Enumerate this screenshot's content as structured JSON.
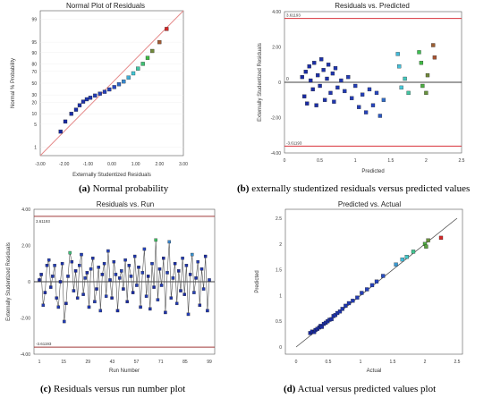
{
  "figure": {
    "captions": [
      {
        "letter": "(a)",
        "text": " Normal probability"
      },
      {
        "letter": "(b)",
        "text": " externally studentized residuals versus predicted values"
      },
      {
        "letter": "(c)",
        "text": " Residuals versus run number plot"
      },
      {
        "letter": "(d)",
        "text": " Actual versus predicted values plot"
      }
    ]
  },
  "chart_data": [
    {
      "id": "a",
      "type": "scatter",
      "title": "Normal Plot of Residuals",
      "xlabel": "Externally Studentized Residuals",
      "ylabel": "Normal % Probability",
      "xlim": [
        -3.0,
        3.0
      ],
      "x_ticks": [
        "-3.00",
        "-2.00",
        "-1.00",
        "0.00",
        "1.00",
        "2.00",
        "3.00"
      ],
      "y_ticks": [
        "1",
        "5",
        "10",
        "20",
        "30",
        "50",
        "70",
        "80",
        "90",
        "95",
        "99"
      ],
      "reference_line": "diagonal",
      "points": [
        [
          -2.15,
          3
        ],
        [
          -1.95,
          6
        ],
        [
          -1.7,
          10
        ],
        [
          -1.5,
          13
        ],
        [
          -1.35,
          17
        ],
        [
          -1.2,
          21
        ],
        [
          -1.05,
          24
        ],
        [
          -0.9,
          26
        ],
        [
          -0.7,
          29
        ],
        [
          -0.5,
          32
        ],
        [
          -0.3,
          35
        ],
        [
          -0.1,
          39
        ],
        [
          0.1,
          43
        ],
        [
          0.3,
          48
        ],
        [
          0.5,
          53
        ],
        [
          0.7,
          60
        ],
        [
          0.9,
          67
        ],
        [
          1.1,
          74
        ],
        [
          1.3,
          80
        ],
        [
          1.5,
          86
        ],
        [
          1.7,
          91
        ],
        [
          2.0,
          95
        ],
        [
          2.3,
          98
        ]
      ]
    },
    {
      "id": "b",
      "type": "scatter",
      "title": "Residuals vs. Predicted",
      "xlabel": "Predicted",
      "ylabel": "Externally Studentized Residuals",
      "xlim": [
        0,
        2.5
      ],
      "ylim": [
        -4.0,
        4.0
      ],
      "x_ticks": [
        "0",
        "0.5",
        "1",
        "1.5",
        "2",
        "2.5"
      ],
      "y_ticks": [
        "4.00",
        "2.00",
        "0",
        "-2.00",
        "-4.00"
      ],
      "limit_labels": [
        "3.61193",
        "-3.61193"
      ],
      "limits": [
        3.61193,
        -3.61193
      ],
      "points": [
        [
          0.25,
          0.3
        ],
        [
          0.28,
          -0.8
        ],
        [
          0.3,
          0.6
        ],
        [
          0.32,
          -1.2
        ],
        [
          0.35,
          0.9
        ],
        [
          0.37,
          0.1
        ],
        [
          0.4,
          -0.4
        ],
        [
          0.42,
          1.1
        ],
        [
          0.45,
          -1.3
        ],
        [
          0.47,
          0.4
        ],
        [
          0.5,
          -0.2
        ],
        [
          0.52,
          1.3
        ],
        [
          0.55,
          0.7
        ],
        [
          0.57,
          -1.0
        ],
        [
          0.6,
          0.2
        ],
        [
          0.62,
          1.0
        ],
        [
          0.65,
          -0.6
        ],
        [
          0.68,
          0.5
        ],
        [
          0.7,
          -1.1
        ],
        [
          0.72,
          0.8
        ],
        [
          0.75,
          -0.3
        ],
        [
          0.8,
          0.1
        ],
        [
          0.85,
          -0.5
        ],
        [
          0.9,
          0.3
        ],
        [
          0.95,
          -0.9
        ],
        [
          1.0,
          -0.2
        ],
        [
          1.05,
          -1.4
        ],
        [
          1.1,
          -0.7
        ],
        [
          1.15,
          -1.7
        ],
        [
          1.2,
          -0.4
        ],
        [
          1.25,
          -1.3
        ],
        [
          1.3,
          -0.6
        ],
        [
          1.35,
          -1.9
        ],
        [
          1.4,
          -1.0
        ],
        [
          1.6,
          1.6
        ],
        [
          1.62,
          0.9
        ],
        [
          1.65,
          -0.3
        ],
        [
          1.7,
          0.2
        ],
        [
          1.75,
          -0.6
        ],
        [
          1.9,
          1.7
        ],
        [
          1.93,
          1.1
        ],
        [
          1.95,
          -0.2
        ],
        [
          2.0,
          -0.6
        ],
        [
          2.02,
          0.4
        ],
        [
          2.1,
          2.1
        ],
        [
          2.12,
          1.4
        ]
      ]
    },
    {
      "id": "c",
      "type": "line",
      "title": "Residuals vs. Run",
      "xlabel": "Run Number",
      "ylabel": "Externally Studentized Residuals",
      "xlim": [
        1,
        99
      ],
      "ylim": [
        -4.0,
        4.0
      ],
      "x_ticks": [
        "1",
        "15",
        "29",
        "43",
        "57",
        "71",
        "85",
        "99"
      ],
      "y_ticks": [
        "4.00",
        "2.00",
        "0",
        "-2.00",
        "-4.00"
      ],
      "limit_labels": [
        "3.61193",
        "-3.61193"
      ],
      "limits": [
        3.61193,
        -3.61193
      ],
      "values": [
        0.1,
        0.4,
        -1.3,
        -0.6,
        0.9,
        1.2,
        -0.3,
        0.3,
        0.9,
        -0.9,
        -1.4,
        0.0,
        1.0,
        -2.2,
        -1.2,
        0.3,
        1.6,
        1.1,
        -0.5,
        0.6,
        -0.9,
        0.9,
        1.5,
        -0.7,
        0.2,
        0.5,
        -1.4,
        0.7,
        1.3,
        -1.1,
        -0.4,
        0.8,
        -1.6,
        0.4,
        1.0,
        -0.8,
        1.7,
        0.1,
        -0.9,
        1.1,
        0.4,
        -1.6,
        0.2,
        0.6,
        -0.4,
        1.2,
        -1.1,
        0.9,
        0.3,
        -0.6,
        1.4,
        -0.2,
        0.8,
        -1.4,
        0.5,
        1.8,
        -0.8,
        0.3,
        -1.5,
        1.0,
        -0.3,
        2.3,
        -1.0,
        0.7,
        -0.2,
        1.3,
        -1.7,
        0.5,
        2.2,
        -0.9,
        0.2,
        1.0,
        -1.2,
        0.6,
        -0.5,
        1.3,
        -0.7,
        0.9,
        -1.8,
        0.4,
        1.5,
        -0.6,
        0.2,
        1.1,
        -1.3,
        0.7,
        -0.4,
        1.4,
        -1.6,
        0.1
      ]
    },
    {
      "id": "d",
      "type": "scatter",
      "title": "Predicted vs. Actual",
      "xlabel": "Actual",
      "ylabel": "Predicted",
      "xlim": [
        0,
        2.5
      ],
      "ylim": [
        0,
        2.5
      ],
      "x_ticks": [
        "0",
        "0.5",
        "1",
        "1.5",
        "2",
        "2.5"
      ],
      "y_ticks": [
        "2.5",
        "2",
        "1.5",
        "1",
        "0.5",
        "0"
      ],
      "reference_line": "diagonal",
      "points": [
        [
          0.22,
          0.27
        ],
        [
          0.25,
          0.3
        ],
        [
          0.28,
          0.29
        ],
        [
          0.3,
          0.33
        ],
        [
          0.33,
          0.35
        ],
        [
          0.36,
          0.38
        ],
        [
          0.38,
          0.41
        ],
        [
          0.4,
          0.39
        ],
        [
          0.43,
          0.45
        ],
        [
          0.46,
          0.47
        ],
        [
          0.49,
          0.5
        ],
        [
          0.52,
          0.53
        ],
        [
          0.55,
          0.54
        ],
        [
          0.58,
          0.6
        ],
        [
          0.61,
          0.62
        ],
        [
          0.64,
          0.66
        ],
        [
          0.68,
          0.69
        ],
        [
          0.72,
          0.74
        ],
        [
          0.77,
          0.8
        ],
        [
          0.82,
          0.85
        ],
        [
          0.88,
          0.9
        ],
        [
          0.95,
          0.96
        ],
        [
          1.02,
          1.05
        ],
        [
          1.1,
          1.12
        ],
        [
          1.18,
          1.2
        ],
        [
          1.25,
          1.27
        ],
        [
          1.35,
          1.38
        ],
        [
          1.55,
          1.6
        ],
        [
          1.65,
          1.7
        ],
        [
          1.72,
          1.75
        ],
        [
          1.82,
          1.85
        ],
        [
          2.0,
          2.0
        ],
        [
          2.02,
          1.95
        ],
        [
          2.05,
          2.07
        ],
        [
          2.25,
          2.12
        ]
      ]
    }
  ]
}
